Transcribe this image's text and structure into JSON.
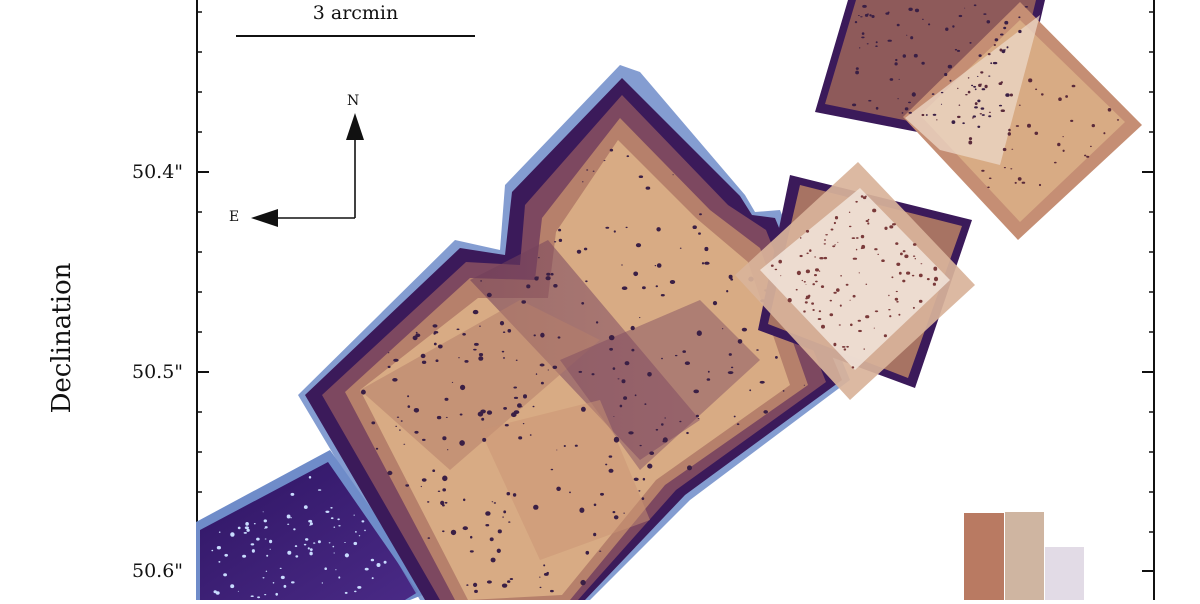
{
  "axes": {
    "ylabel": "Declination",
    "yticks": [
      {
        "label": "50.4\"",
        "value": 50.4
      },
      {
        "label": "50.5\"",
        "value": 50.5
      },
      {
        "label": "50.6\"",
        "value": 50.6
      }
    ],
    "minor_ticks": true
  },
  "scale_bar": {
    "label": "3 arcmin"
  },
  "compass": {
    "north": "N",
    "east": "E"
  },
  "colors": {
    "outer_frame": "#3b1a5a",
    "edge_blue": "#6f8cc9",
    "mosaic_dark": "#7d4860",
    "mosaic_mid": "#b6806b",
    "mosaic_light": "#d8ab84",
    "overlay_pale": "#f1e4da",
    "galaxy_dark": "#3a1f45",
    "deep_field": "#3c1e70",
    "swatch_1": "#b97a62",
    "swatch_2": "#cfb5a1",
    "swatch_3": "#e2dbe6"
  }
}
